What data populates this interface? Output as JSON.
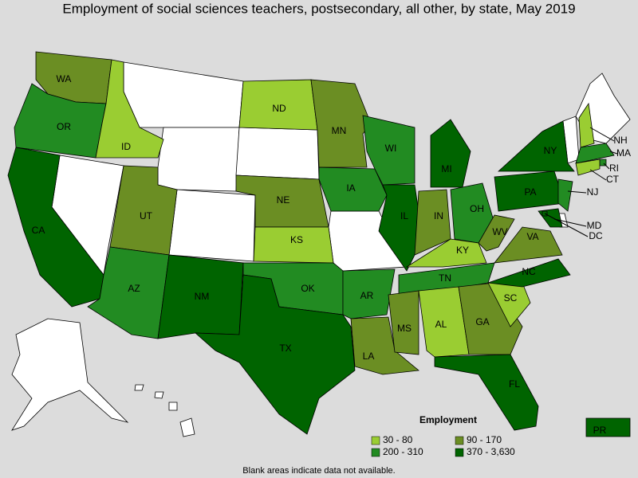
{
  "title": "Employment of social sciences teachers, postsecondary, all other, by state, May 2019",
  "legend": {
    "title": "Employment",
    "classes": [
      {
        "label": "30 - 80",
        "color": "#9acd32"
      },
      {
        "label": "90 - 170",
        "color": "#6b8e23"
      },
      {
        "label": "200 - 310",
        "color": "#228b22"
      },
      {
        "label": "370 - 3,630",
        "color": "#006400"
      }
    ]
  },
  "states": [
    {
      "label": "WA",
      "class": 1
    },
    {
      "label": "OR",
      "class": 2
    },
    {
      "label": "CA",
      "class": 3
    },
    {
      "label": "ID",
      "class": 0
    },
    {
      "label": "UT",
      "class": 1
    },
    {
      "label": "AZ",
      "class": 2
    },
    {
      "label": "NM",
      "class": 3
    },
    {
      "label": "ND",
      "class": 0
    },
    {
      "label": "NE",
      "class": 1
    },
    {
      "label": "KS",
      "class": 0
    },
    {
      "label": "OK",
      "class": 2
    },
    {
      "label": "TX",
      "class": 3
    },
    {
      "label": "MN",
      "class": 1
    },
    {
      "label": "IA",
      "class": 2
    },
    {
      "label": "AR",
      "class": 2
    },
    {
      "label": "LA",
      "class": 1
    },
    {
      "label": "WI",
      "class": 2
    },
    {
      "label": "IL",
      "class": 3
    },
    {
      "label": "MI",
      "class": 3
    },
    {
      "label": "IN",
      "class": 1
    },
    {
      "label": "OH",
      "class": 2
    },
    {
      "label": "KY",
      "class": 0
    },
    {
      "label": "TN",
      "class": 2
    },
    {
      "label": "MS",
      "class": 1
    },
    {
      "label": "AL",
      "class": 0
    },
    {
      "label": "GA",
      "class": 1
    },
    {
      "label": "FL",
      "class": 3
    },
    {
      "label": "SC",
      "class": 0
    },
    {
      "label": "NC",
      "class": 3
    },
    {
      "label": "VA",
      "class": 1
    },
    {
      "label": "WV",
      "class": 1
    },
    {
      "label": "PA",
      "class": 3
    },
    {
      "label": "NY",
      "class": 3
    },
    {
      "label": "NJ",
      "class": 2
    },
    {
      "label": "NH",
      "class": 0
    },
    {
      "label": "MA",
      "class": 2
    },
    {
      "label": "RI",
      "class": 2
    },
    {
      "label": "CT",
      "class": 0
    },
    {
      "label": "MD",
      "class": 3
    },
    {
      "label": "DC",
      "class": 3
    },
    {
      "label": "PR",
      "class": 3
    }
  ],
  "note": "Blank areas indicate data not available."
}
